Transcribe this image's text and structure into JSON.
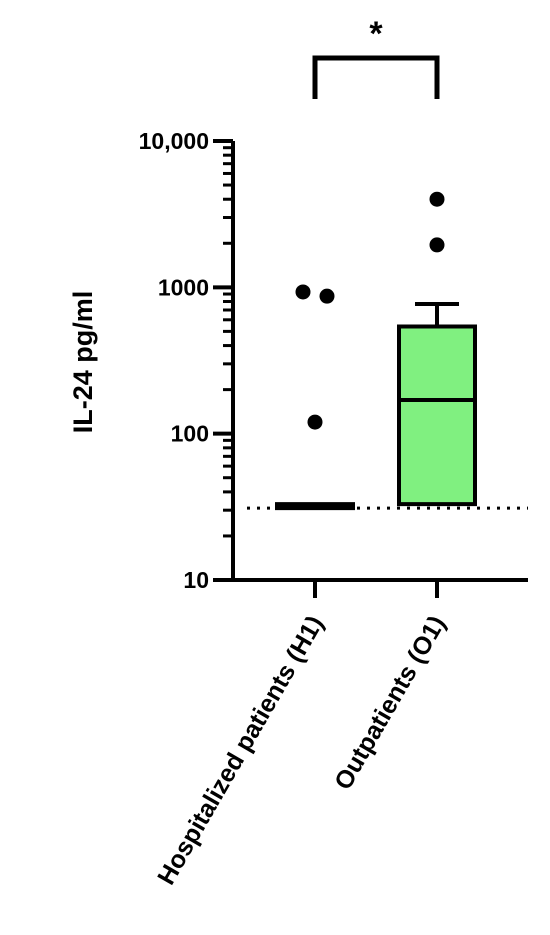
{
  "chart_data": {
    "type": "box",
    "ylabel": "IL-24 pg/ml",
    "yscale": "log",
    "ylim": [
      10,
      10000
    ],
    "yticks": [
      10,
      100,
      1000,
      10000
    ],
    "ytick_labels": [
      "10",
      "100",
      "1000",
      "10,000"
    ],
    "detection_limit": 31,
    "categories": [
      "Hospitalized patients (H1)",
      "Outpatients (O1)"
    ],
    "boxes": [
      {
        "category": "Hospitalized patients (H1)",
        "q1": 31,
        "median": 31,
        "q3": 33,
        "whisker_low": 31,
        "whisker_high": 33,
        "fill": "#000000",
        "outliers": [
          {
            "dx": -0.12,
            "y": 930
          },
          {
            "dx": 0.12,
            "y": 870
          },
          {
            "dx": 0.0,
            "y": 120
          }
        ]
      },
      {
        "category": "Outpatients (O1)",
        "q1": 33,
        "median": 170,
        "q3": 540,
        "whisker_low": 33,
        "whisker_high": 770,
        "fill": "#80f080",
        "outliers": [
          {
            "dx": 0.0,
            "y": 4000
          },
          {
            "dx": 0.0,
            "y": 1950
          }
        ]
      }
    ],
    "significance": {
      "label": "*",
      "between": [
        0,
        1
      ]
    }
  }
}
